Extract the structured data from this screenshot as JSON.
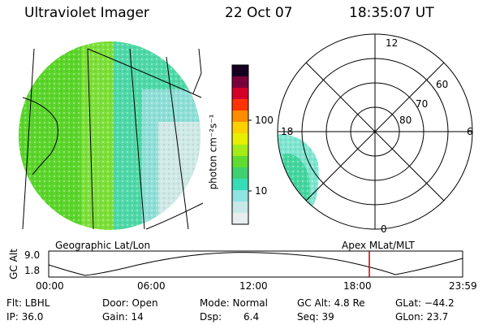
{
  "header": {
    "instrument": "Ultraviolet Imager",
    "date": "22 Oct 07",
    "time": "18:35:07 UT"
  },
  "left_panel": {
    "label": "Geographic Lat/Lon"
  },
  "right_panel": {
    "label": "Apex MLat/MLT",
    "hour_labels": {
      "top": "12",
      "bottom": "0",
      "left": "18",
      "right": "6"
    },
    "lat_labels": [
      "60",
      "70",
      "80"
    ]
  },
  "colorbar": {
    "unit": "photon cm⁻²s⁻¹",
    "ticks": [
      "100",
      "10"
    ]
  },
  "orbit_plot": {
    "ylabel": "GC Alt",
    "ymax": "9.0",
    "ymin": "1.8",
    "xticks": [
      "00:00",
      "06:00",
      "12:00",
      "18:00",
      "23:59"
    ],
    "marker_color": "#cc0000"
  },
  "info": {
    "filter": "Flt: LBHL",
    "ip": "IP: 36.0",
    "door": "Door: Open",
    "gain": "Gain: 14",
    "mode": "Mode: Normal",
    "dsp_label": "Dsp:",
    "dsp_value": "6.4",
    "gc_alt": "GC Alt: 4.8 Re",
    "seq": "Seq: 39",
    "glat": "GLat: −44.2",
    "glon": "GLon:  23.7"
  }
}
